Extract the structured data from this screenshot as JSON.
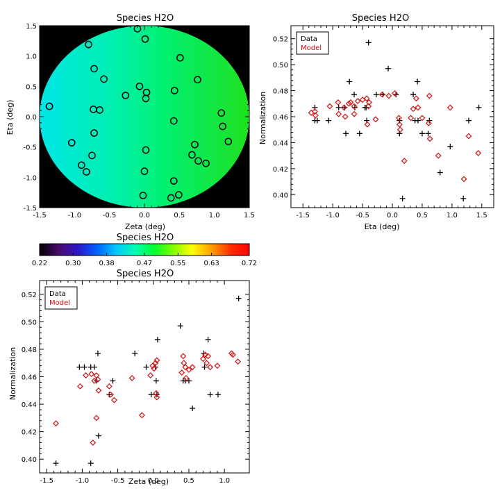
{
  "chart_data": [
    {
      "type": "scatter",
      "title": "Species H2O",
      "xlabel": "Zeta (deg)",
      "ylabel": "Eta (deg)",
      "xlim": [
        -1.5,
        1.5
      ],
      "ylim": [
        -1.5,
        1.5
      ],
      "xticks": [
        "-1.5",
        "-1.0",
        "-0.5",
        "0.0",
        "0.5",
        "1.0",
        "1.5"
      ],
      "yticks": [
        "-1.5",
        "-1.0",
        "-0.5",
        "0.0",
        "0.5",
        "1.0",
        "1.5"
      ],
      "background_map": "circular field, cyan at left to green at right, black outside",
      "marker": "open circle",
      "points": [
        [
          -0.1,
          1.45
        ],
        [
          0.01,
          1.28
        ],
        [
          -0.8,
          1.19
        ],
        [
          0.51,
          0.97
        ],
        [
          -0.72,
          0.79
        ],
        [
          -0.58,
          0.62
        ],
        [
          0.76,
          0.61
        ],
        [
          -0.07,
          0.5
        ],
        [
          0.43,
          0.43
        ],
        [
          0.03,
          0.4
        ],
        [
          -0.27,
          0.35
        ],
        [
          0.02,
          0.3
        ],
        [
          -1.36,
          0.17
        ],
        [
          -0.73,
          0.12
        ],
        [
          -0.64,
          0.11
        ],
        [
          1.1,
          0.06
        ],
        [
          0.42,
          -0.07
        ],
        [
          1.12,
          -0.16
        ],
        [
          -0.72,
          -0.27
        ],
        [
          1.2,
          -0.41
        ],
        [
          -1.04,
          -0.43
        ],
        [
          0.72,
          -0.46
        ],
        [
          0.02,
          -0.55
        ],
        [
          0.68,
          -0.63
        ],
        [
          -0.75,
          -0.64
        ],
        [
          0.77,
          -0.73
        ],
        [
          0.88,
          -0.77
        ],
        [
          -0.9,
          -0.8
        ],
        [
          -0.83,
          -0.91
        ],
        [
          0.0,
          -0.9
        ],
        [
          0.42,
          -1.06
        ],
        [
          0.49,
          -1.29
        ],
        [
          -0.02,
          -1.3
        ],
        [
          0.38,
          -1.34
        ]
      ]
    },
    {
      "type": "scatter",
      "title": "Species H2O",
      "xlabel": "Eta (deg)",
      "ylabel": "Normalization",
      "xlim": [
        -1.7,
        1.7
      ],
      "ylim": [
        0.39,
        0.53
      ],
      "xticks": [
        "-1.5",
        "-1.0",
        "-0.5",
        "0.0",
        "0.5",
        "1.0",
        "1.5"
      ],
      "yticks": [
        "0.40",
        "0.42",
        "0.44",
        "0.46",
        "0.48",
        "0.50",
        "0.52"
      ],
      "legend": {
        "position": "top-left",
        "entries": [
          "Data",
          "Model"
        ]
      },
      "series": [
        {
          "name": "Data",
          "color": "#000000",
          "marker": "plus",
          "points": [
            [
              -1.3,
              0.457
            ],
            [
              -1.26,
              0.457
            ],
            [
              -1.3,
              0.467
            ],
            [
              -1.07,
              0.457
            ],
            [
              -0.9,
              0.467
            ],
            [
              -0.8,
              0.467
            ],
            [
              -0.78,
              0.447
            ],
            [
              -0.72,
              0.487
            ],
            [
              -0.64,
              0.477
            ],
            [
              -0.63,
              0.467
            ],
            [
              -0.55,
              0.447
            ],
            [
              -0.46,
              0.467
            ],
            [
              -0.44,
              0.467
            ],
            [
              -0.43,
              0.457
            ],
            [
              -0.4,
              0.517
            ],
            [
              -0.27,
              0.477
            ],
            [
              -0.16,
              0.477
            ],
            [
              -0.07,
              0.497
            ],
            [
              0.06,
              0.477
            ],
            [
              0.12,
              0.447
            ],
            [
              0.12,
              0.457
            ],
            [
              0.17,
              0.397
            ],
            [
              0.35,
              0.477
            ],
            [
              0.38,
              0.457
            ],
            [
              0.42,
              0.487
            ],
            [
              0.43,
              0.457
            ],
            [
              0.5,
              0.447
            ],
            [
              0.6,
              0.447
            ],
            [
              0.62,
              0.457
            ],
            [
              0.8,
              0.417
            ],
            [
              0.97,
              0.437
            ],
            [
              1.19,
              0.397
            ],
            [
              1.28,
              0.457
            ],
            [
              1.45,
              0.467
            ]
          ]
        },
        {
          "name": "Model",
          "color": "#d01010",
          "marker": "diamond",
          "points": [
            [
              -1.36,
              0.463
            ],
            [
              -1.3,
              0.464
            ],
            [
              -1.29,
              0.461
            ],
            [
              -1.05,
              0.468
            ],
            [
              -0.91,
              0.471
            ],
            [
              -0.9,
              0.462
            ],
            [
              -0.81,
              0.467
            ],
            [
              -0.79,
              0.46
            ],
            [
              -0.73,
              0.47
            ],
            [
              -0.7,
              0.471
            ],
            [
              -0.64,
              0.468
            ],
            [
              -0.64,
              0.462
            ],
            [
              -0.58,
              0.472
            ],
            [
              -0.5,
              0.473
            ],
            [
              -0.43,
              0.474
            ],
            [
              -0.42,
              0.454
            ],
            [
              -0.4,
              0.468
            ],
            [
              -0.39,
              0.471
            ],
            [
              -0.28,
              0.458
            ],
            [
              -0.17,
              0.477
            ],
            [
              -0.06,
              0.476
            ],
            [
              0.04,
              0.478
            ],
            [
              0.11,
              0.459
            ],
            [
              0.12,
              0.454
            ],
            [
              0.13,
              0.45
            ],
            [
              0.2,
              0.426
            ],
            [
              0.31,
              0.459
            ],
            [
              0.35,
              0.466
            ],
            [
              0.4,
              0.474
            ],
            [
              0.43,
              0.467
            ],
            [
              0.5,
              0.459
            ],
            [
              0.61,
              0.455
            ],
            [
              0.62,
              0.476
            ],
            [
              0.63,
              0.443
            ],
            [
              0.77,
              0.43
            ],
            [
              0.97,
              0.467
            ],
            [
              1.2,
              0.412
            ],
            [
              1.28,
              0.445
            ],
            [
              1.44,
              0.432
            ]
          ]
        }
      ]
    },
    {
      "type": "heatmap",
      "title": "Species H2O",
      "colorbar_ticks": [
        "0.22",
        "0.30",
        "0.38",
        "0.47",
        "0.55",
        "0.63",
        "0.72"
      ],
      "vmin": 0.22,
      "vmax": 0.72,
      "colormap": [
        "#000000",
        "#4a0a6e",
        "#2e15c8",
        "#0060ff",
        "#00c8ff",
        "#00ffb4",
        "#00ff30",
        "#80ff00",
        "#ffff00",
        "#ffa000",
        "#ff3000",
        "#ff0000"
      ]
    },
    {
      "type": "scatter",
      "title": "Species H2O",
      "xlabel": "Zeta (deg)",
      "ylabel": "Normalization",
      "xlim": [
        -1.6,
        1.35
      ],
      "ylim": [
        0.39,
        0.53
      ],
      "xticks": [
        "-1.5",
        "-1.0",
        "-0.5",
        "0.0",
        "0.5",
        "1.0"
      ],
      "yticks": [
        "0.40",
        "0.42",
        "0.44",
        "0.46",
        "0.48",
        "0.50",
        "0.52"
      ],
      "legend": {
        "position": "top-left",
        "entries": [
          "Data",
          "Model"
        ]
      },
      "series": [
        {
          "name": "Data",
          "color": "#000000",
          "marker": "plus",
          "points": [
            [
              -1.37,
              0.397
            ],
            [
              -1.04,
              0.467
            ],
            [
              -0.97,
              0.467
            ],
            [
              -0.88,
              0.467
            ],
            [
              -0.83,
              0.467
            ],
            [
              -0.88,
              0.397
            ],
            [
              -0.8,
              0.457
            ],
            [
              -0.78,
              0.477
            ],
            [
              -0.77,
              0.417
            ],
            [
              -0.62,
              0.447
            ],
            [
              -0.57,
              0.457
            ],
            [
              -0.26,
              0.477
            ],
            [
              -0.1,
              0.467
            ],
            [
              -0.03,
              0.447
            ],
            [
              0.03,
              0.467
            ],
            [
              0.04,
              0.457
            ],
            [
              0.05,
              0.447
            ],
            [
              0.06,
              0.487
            ],
            [
              0.38,
              0.497
            ],
            [
              0.42,
              0.457
            ],
            [
              0.45,
              0.457
            ],
            [
              0.5,
              0.457
            ],
            [
              0.55,
              0.437
            ],
            [
              0.71,
              0.477
            ],
            [
              0.72,
              0.467
            ],
            [
              0.77,
              0.487
            ],
            [
              0.8,
              0.447
            ],
            [
              0.91,
              0.447
            ],
            [
              1.2,
              0.517
            ]
          ]
        },
        {
          "name": "Model",
          "color": "#d01010",
          "marker": "diamond",
          "points": [
            [
              -1.37,
              0.426
            ],
            [
              -1.03,
              0.453
            ],
            [
              -0.95,
              0.461
            ],
            [
              -0.87,
              0.462
            ],
            [
              -0.83,
              0.457
            ],
            [
              -0.8,
              0.461
            ],
            [
              -0.78,
              0.458
            ],
            [
              -0.77,
              0.45
            ],
            [
              -0.85,
              0.412
            ],
            [
              -0.8,
              0.43
            ],
            [
              -0.62,
              0.453
            ],
            [
              -0.6,
              0.447
            ],
            [
              -0.55,
              0.443
            ],
            [
              -0.3,
              0.459
            ],
            [
              -0.16,
              0.432
            ],
            [
              -0.04,
              0.461
            ],
            [
              -0.01,
              0.468
            ],
            [
              0.01,
              0.466
            ],
            [
              0.03,
              0.47
            ],
            [
              0.04,
              0.448
            ],
            [
              0.05,
              0.445
            ],
            [
              0.05,
              0.472
            ],
            [
              0.4,
              0.463
            ],
            [
              0.42,
              0.475
            ],
            [
              0.43,
              0.47
            ],
            [
              0.45,
              0.467
            ],
            [
              0.46,
              0.459
            ],
            [
              0.5,
              0.465
            ],
            [
              0.55,
              0.467
            ],
            [
              0.7,
              0.473
            ],
            [
              0.73,
              0.476
            ],
            [
              0.75,
              0.47
            ],
            [
              0.77,
              0.475
            ],
            [
              0.8,
              0.467
            ],
            [
              0.9,
              0.468
            ],
            [
              1.1,
              0.477
            ],
            [
              1.12,
              0.476
            ],
            [
              1.19,
              0.471
            ]
          ]
        }
      ]
    }
  ]
}
